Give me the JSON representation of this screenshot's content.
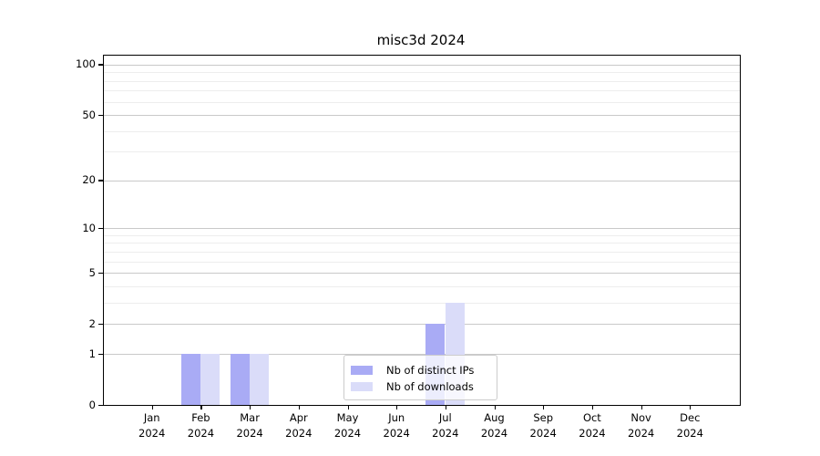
{
  "title": "misc3d 2024",
  "chart_data": {
    "type": "bar",
    "title": "misc3d 2024",
    "xlabel": "",
    "ylabel": "",
    "categories": [
      "Jan 2024",
      "Feb 2024",
      "Mar 2024",
      "Apr 2024",
      "May 2024",
      "Jun 2024",
      "Jul 2024",
      "Aug 2024",
      "Sep 2024",
      "Oct 2024",
      "Nov 2024",
      "Dec 2024"
    ],
    "series": [
      {
        "name": "Nb of distinct IPs",
        "color": "#a9abf5",
        "values": [
          0,
          1,
          1,
          0,
          0,
          0,
          2,
          0,
          0,
          0,
          0,
          0
        ]
      },
      {
        "name": "Nb of downloads",
        "color": "#dadcf9",
        "values": [
          0,
          1,
          1,
          0,
          0,
          0,
          3,
          0,
          0,
          0,
          0,
          0
        ]
      }
    ],
    "yticks": [
      0,
      1,
      2,
      5,
      10,
      20,
      50,
      100
    ],
    "minor_gridlines": [
      3,
      4,
      6,
      7,
      8,
      9,
      30,
      40,
      60,
      70,
      80,
      90
    ],
    "scale": "log1p",
    "ylim": [
      0,
      113
    ],
    "grid": true,
    "legend_position": "bottom-center"
  },
  "legend": {
    "items": [
      {
        "label": "Nb of distinct IPs",
        "color": "#a9abf5"
      },
      {
        "label": "Nb of downloads",
        "color": "#dadcf9"
      }
    ]
  },
  "colors": {
    "distinct_ips": "#a9abf5",
    "downloads": "#dadcf9",
    "grid_major": "#c9c9c9",
    "grid_minor": "#ededed",
    "axis": "#000000",
    "background": "#ffffff"
  }
}
